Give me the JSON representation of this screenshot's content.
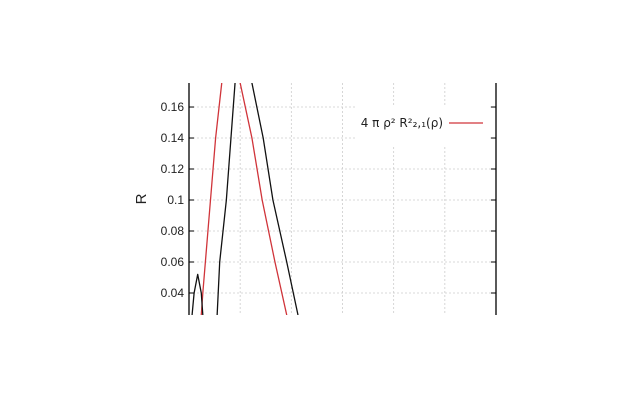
{
  "chart_data": {
    "type": "line",
    "title": "",
    "xlabel": "",
    "ylabel": "R",
    "xlim": [
      0,
      6
    ],
    "ylim": [
      0.0258,
      0.1755
    ],
    "yticks": [
      "0.04",
      "0.06",
      "0.08",
      "0.1",
      "0.12",
      "0.14",
      "0.16"
    ],
    "ytick_values": [
      0.04,
      0.06,
      0.08,
      0.1,
      0.12,
      0.14,
      0.16
    ],
    "xgrid": [
      1,
      2,
      3,
      4,
      5
    ],
    "grid": true,
    "legend_position": "top-right",
    "legend_label": "4 π ρ² R²₂,₁(ρ)",
    "series": [
      {
        "name": "4 π ρ² R²₂,₁(ρ)",
        "color": "#d0343a",
        "x": [
          0.24,
          0.27,
          0.37,
          0.52,
          0.64,
          0.8,
          1.0,
          1.23,
          1.43,
          1.68,
          1.91
        ],
        "y": [
          0.0258,
          0.04,
          0.08,
          0.14,
          0.1755,
          0.19,
          0.1755,
          0.14,
          0.1,
          0.06,
          0.0258
        ]
      },
      {
        "color": "#111111",
        "x": [
          0.06,
          0.1,
          0.17,
          0.24,
          0.27
        ],
        "y": [
          0.0258,
          0.04,
          0.052,
          0.04,
          0.0258
        ]
      },
      {
        "color": "#111111",
        "x": [
          0.55,
          0.6,
          0.73,
          0.82,
          0.9,
          1.05,
          1.23,
          1.45,
          1.64,
          1.91,
          2.13
        ],
        "y": [
          0.0258,
          0.06,
          0.1,
          0.14,
          0.1755,
          0.19,
          0.1755,
          0.14,
          0.1,
          0.06,
          0.0258
        ]
      }
    ]
  }
}
